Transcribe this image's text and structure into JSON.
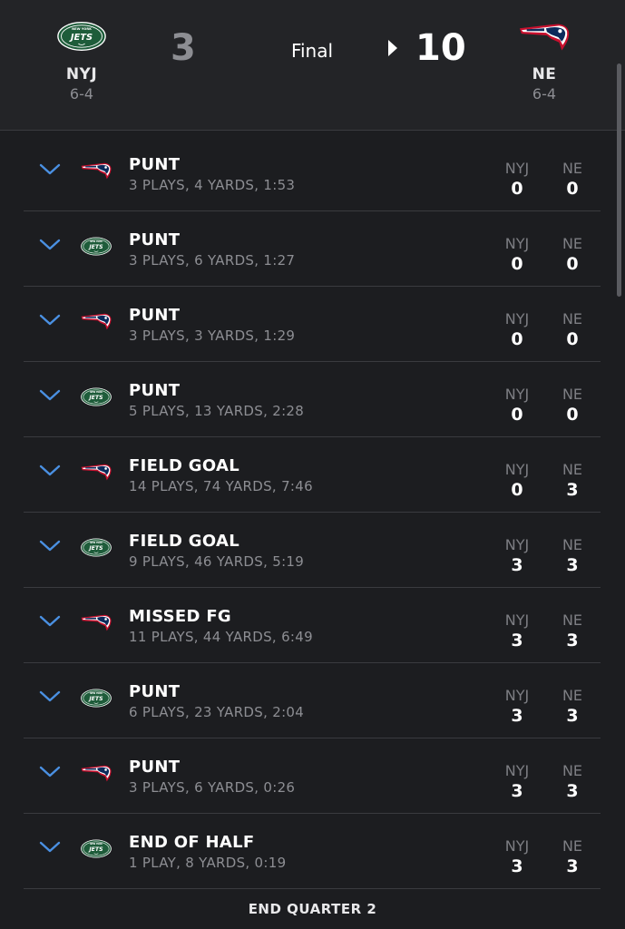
{
  "header": {
    "away": {
      "abbr": "NYJ",
      "record": "6-4",
      "score": "3",
      "logo": "jets-logo"
    },
    "home": {
      "abbr": "NE",
      "record": "6-4",
      "score": "10",
      "logo": "patriots-logo"
    },
    "status": "Final",
    "winner_indicator": "winner-arrow-icon"
  },
  "columns": {
    "away": "NYJ",
    "home": "NE"
  },
  "drives": [
    {
      "team": "NE",
      "result": "PUNT",
      "summary": "3 PLAYS, 4 YARDS, 1:53",
      "nyj": "0",
      "ne": "0"
    },
    {
      "team": "NYJ",
      "result": "PUNT",
      "summary": "3 PLAYS, 6 YARDS, 1:27",
      "nyj": "0",
      "ne": "0"
    },
    {
      "team": "NE",
      "result": "PUNT",
      "summary": "3 PLAYS, 3 YARDS, 1:29",
      "nyj": "0",
      "ne": "0"
    },
    {
      "team": "NYJ",
      "result": "PUNT",
      "summary": "5 PLAYS, 13 YARDS, 2:28",
      "nyj": "0",
      "ne": "0"
    },
    {
      "team": "NE",
      "result": "FIELD GOAL",
      "summary": "14 PLAYS, 74 YARDS, 7:46",
      "nyj": "0",
      "ne": "3"
    },
    {
      "team": "NYJ",
      "result": "FIELD GOAL",
      "summary": "9 PLAYS, 46 YARDS, 5:19",
      "nyj": "3",
      "ne": "3"
    },
    {
      "team": "NE",
      "result": "MISSED FG",
      "summary": "11 PLAYS, 44 YARDS, 6:49",
      "nyj": "3",
      "ne": "3"
    },
    {
      "team": "NYJ",
      "result": "PUNT",
      "summary": "6 PLAYS, 23 YARDS, 2:04",
      "nyj": "3",
      "ne": "3"
    },
    {
      "team": "NE",
      "result": "PUNT",
      "summary": "3 PLAYS, 6 YARDS, 0:26",
      "nyj": "3",
      "ne": "3"
    },
    {
      "team": "NYJ",
      "result": "END OF HALF",
      "summary": "1 PLAY, 8 YARDS, 0:19",
      "nyj": "3",
      "ne": "3"
    }
  ],
  "footer": {
    "label": "END QUARTER 2"
  },
  "colors": {
    "background": "#1c1d20",
    "header": "#232427",
    "chevron": "#4a90e2",
    "jets_green": "#1e5c3a",
    "patriots_navy": "#0b2a5b",
    "patriots_red": "#c8102e"
  }
}
